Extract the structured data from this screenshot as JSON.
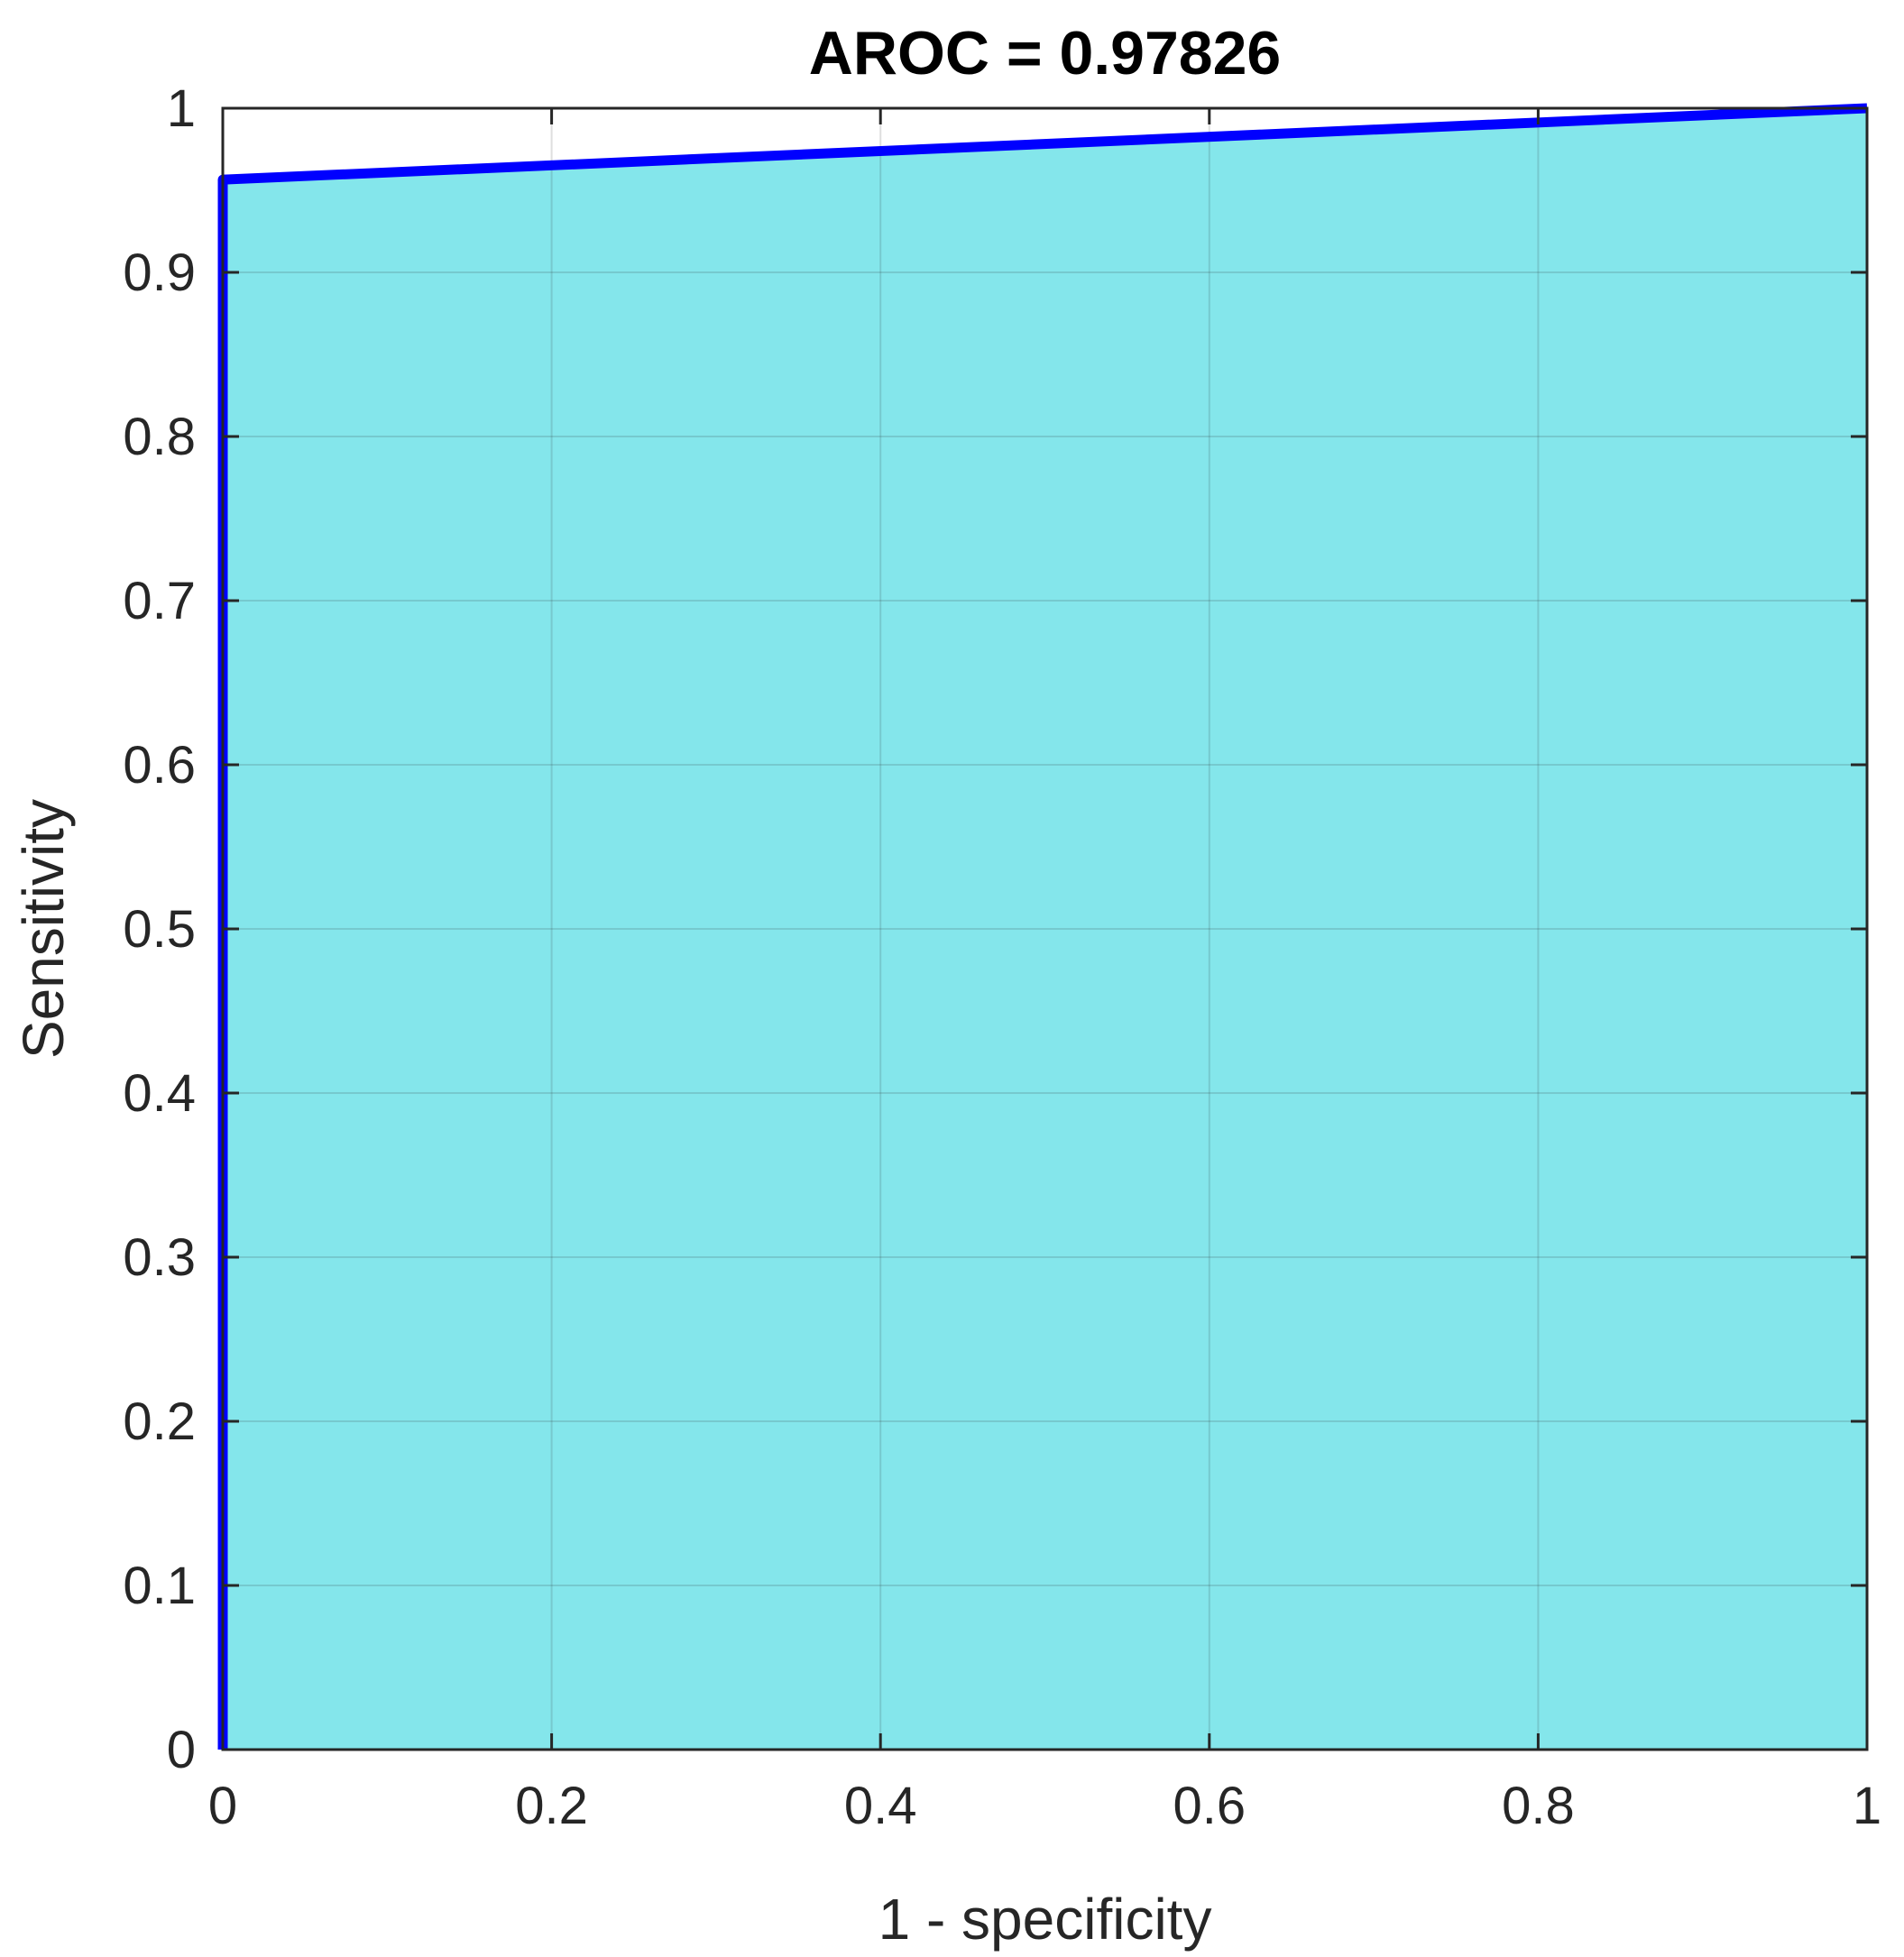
{
  "chart_data": {
    "type": "area",
    "title": "AROC = 0.97826",
    "xlabel": "1 - specificity",
    "ylabel": "Sensitivity",
    "xlim": [
      0,
      1
    ],
    "ylim": [
      0,
      1
    ],
    "xticks": [
      "0",
      "0.2",
      "0.4",
      "0.6",
      "0.8",
      "1"
    ],
    "yticks": [
      "0",
      "0.1",
      "0.2",
      "0.3",
      "0.4",
      "0.5",
      "0.6",
      "0.7",
      "0.8",
      "0.9",
      "1"
    ],
    "grid": true,
    "series": [
      {
        "x": [
          0,
          0,
          1
        ],
        "y": [
          0,
          0.9565,
          1
        ],
        "line_color": "#0000ff",
        "fill_color": "#84e6eb"
      }
    ]
  }
}
